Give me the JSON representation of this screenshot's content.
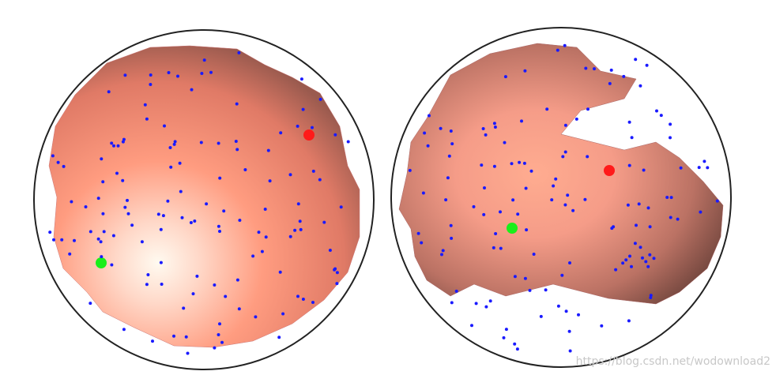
{
  "watermark": "https://blog.csdn.net/wodownload2"
}
